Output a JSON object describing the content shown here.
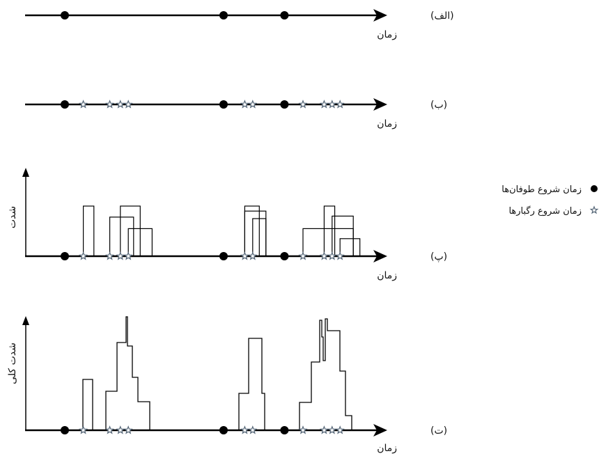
{
  "panels": [
    {
      "label": "(الف)",
      "x_label": "زمان",
      "storms": [
        1.5,
        7.5,
        9.8
      ],
      "cells": []
    },
    {
      "label": "(ب)",
      "x_label": "زمان",
      "storms": [
        1.5,
        7.5,
        9.8
      ],
      "cells": [
        2.2,
        3.2,
        3.6,
        3.9,
        8.3,
        8.6,
        10.5,
        11.3,
        11.6,
        11.9
      ]
    },
    {
      "label": "(پ)",
      "x_label": "زمان",
      "y_label": "شدت",
      "storms": [
        1.5,
        7.5,
        9.8
      ],
      "cells": [
        2.2,
        3.2,
        3.6,
        3.9,
        8.3,
        8.6,
        10.5,
        11.3,
        11.6,
        11.9
      ],
      "pulses": [
        [
          2.2,
          2.6,
          1.0
        ],
        [
          3.2,
          4.1,
          0.78
        ],
        [
          3.6,
          4.35,
          1.0
        ],
        [
          3.9,
          4.8,
          0.55
        ],
        [
          8.3,
          8.85,
          1.0
        ],
        [
          8.3,
          9.1,
          0.9
        ],
        [
          8.6,
          9.1,
          0.75
        ],
        [
          10.5,
          12.4,
          0.55
        ],
        [
          11.3,
          11.7,
          1.0
        ],
        [
          11.6,
          12.4,
          0.8
        ],
        [
          11.9,
          12.65,
          0.35
        ]
      ]
    },
    {
      "label": "(ت)",
      "x_label": "زمان",
      "y_label": "شدت کلی",
      "storms": [
        1.5,
        7.5,
        9.8
      ],
      "cells": [
        2.2,
        3.2,
        3.6,
        3.9,
        8.3,
        8.6,
        10.5,
        11.3,
        11.6,
        11.9
      ]
    }
  ],
  "legend": [
    {
      "symbol": "circle",
      "text": "زمان شروع طوفان‌ها"
    },
    {
      "symbol": "star",
      "text": "زمان شروع رگبارها"
    }
  ],
  "colors": {
    "line": "#000000",
    "star": "#556677",
    "background": "#ffffff"
  }
}
